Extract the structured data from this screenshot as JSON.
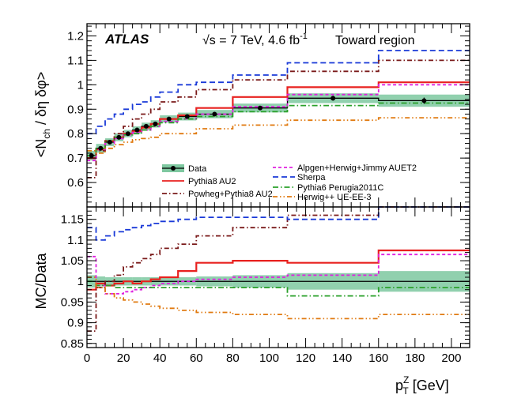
{
  "chart_data": {
    "type": "line",
    "experiment": "ATLAS",
    "energy_label": "√s = 7 TeV, 4.6 fb",
    "lumi_superscript": "-1",
    "region_label": "Toward region",
    "xlabel": "p",
    "xlabel_sup": "Z",
    "xlabel_sub": "T",
    "xlabel_unit": " [GeV]",
    "xlim": [
      0,
      210
    ],
    "xticks": [
      0,
      20,
      40,
      60,
      80,
      100,
      120,
      140,
      160,
      180,
      200
    ],
    "bin_edges": [
      0,
      5,
      10,
      15,
      20,
      25,
      30,
      35,
      40,
      50,
      60,
      80,
      110,
      160,
      210
    ],
    "top_panel": {
      "ylabel": "<N",
      "ylabel_sub": "ch",
      "ylabel_rest": " / δη δφ>",
      "ylim": [
        0.5,
        1.25
      ],
      "yticks": [
        0.6,
        0.7,
        0.8,
        0.9,
        1.0,
        1.1,
        1.2
      ],
      "ytick_labels": [
        "0.6",
        "0.7",
        "0.8",
        "0.9",
        "1",
        "1.1",
        "1.2"
      ],
      "data": {
        "name": "Data",
        "x": [
          2.5,
          7.5,
          12.5,
          17.5,
          22.5,
          27.5,
          32.5,
          37.5,
          45,
          55,
          70,
          95,
          135,
          185
        ],
        "y": [
          0.71,
          0.74,
          0.765,
          0.785,
          0.8,
          0.815,
          0.83,
          0.84,
          0.86,
          0.87,
          0.88,
          0.905,
          0.945,
          0.935
        ],
        "band_half": [
          0.02,
          0.018,
          0.016,
          0.016,
          0.015,
          0.015,
          0.015,
          0.015,
          0.015,
          0.016,
          0.017,
          0.018,
          0.02,
          0.025
        ]
      },
      "series": [
        {
          "name": "Pythia8 AU2",
          "color": "#e8211f",
          "dash": "",
          "values": [
            0.7,
            0.735,
            0.77,
            0.785,
            0.8,
            0.81,
            0.825,
            0.84,
            0.86,
            0.875,
            0.905,
            0.95,
            0.99,
            1.01
          ]
        },
        {
          "name": "Powheg+Pythia8 AU2",
          "color": "#7a1a1a",
          "dash": "6,3,1.5,3",
          "values": [
            0.62,
            0.73,
            0.77,
            0.8,
            0.83,
            0.86,
            0.88,
            0.9,
            0.93,
            0.95,
            0.98,
            1.02,
            1.055,
            1.1
          ]
        },
        {
          "name": "Alpgen+Herwig+Jimmy AUET2",
          "color": "#e020e0",
          "dash": "4,3",
          "values": [
            0.69,
            0.735,
            0.76,
            0.78,
            0.795,
            0.805,
            0.815,
            0.83,
            0.85,
            0.86,
            0.88,
            0.91,
            0.96,
            1.0
          ]
        },
        {
          "name": "Sherpa",
          "color": "#1a3ad8",
          "dash": "7,4",
          "values": [
            0.8,
            0.83,
            0.86,
            0.88,
            0.9,
            0.92,
            0.93,
            0.95,
            0.97,
            1.0,
            1.01,
            1.04,
            1.09,
            1.14
          ]
        },
        {
          "name": "Pythia6 Perugia2011C",
          "color": "#2aa02a",
          "dash": "7,3,1.5,3",
          "values": [
            0.71,
            0.74,
            0.77,
            0.785,
            0.795,
            0.8,
            0.815,
            0.83,
            0.845,
            0.86,
            0.87,
            0.89,
            0.915,
            0.925
          ]
        },
        {
          "name": "Herwig++ UE-EE-3",
          "color": "#e07a10",
          "dash": "6,3,1.5,3,1.5,3",
          "values": [
            0.73,
            0.72,
            0.74,
            0.755,
            0.765,
            0.775,
            0.78,
            0.785,
            0.8,
            0.8,
            0.82,
            0.835,
            0.855,
            0.865
          ]
        }
      ]
    },
    "bottom_panel": {
      "ylabel": "MC/Data",
      "ylim": [
        0.84,
        1.18
      ],
      "yticks": [
        0.85,
        0.9,
        0.95,
        1.0,
        1.05,
        1.1,
        1.15
      ],
      "ytick_labels": [
        "0.85",
        "0.9",
        "0.95",
        "1",
        "1.05",
        "1.1",
        "1.15"
      ],
      "band_half": [
        0.015,
        0.012,
        0.01,
        0.01,
        0.01,
        0.01,
        0.01,
        0.01,
        0.01,
        0.01,
        0.012,
        0.015,
        0.02,
        0.025
      ],
      "series": [
        {
          "name": "Pythia8 AU2",
          "values": [
            0.98,
            0.995,
            0.99,
            0.995,
            1.0,
            0.995,
            1.0,
            1.005,
            1.01,
            1.025,
            1.045,
            1.05,
            1.045,
            1.075
          ]
        },
        {
          "name": "Powheg+Pythia8 AU2",
          "values": [
            0.88,
            0.985,
            1.0,
            1.015,
            1.035,
            1.045,
            1.055,
            1.065,
            1.08,
            1.09,
            1.11,
            1.13,
            1.16,
            1.18
          ]
        },
        {
          "name": "Alpgen+Herwig+Jimmy AUET2",
          "values": [
            1.06,
            0.99,
            0.97,
            0.97,
            0.975,
            0.98,
            0.985,
            0.99,
            0.995,
            1.0,
            1.005,
            1.01,
            1.015,
            1.065
          ]
        },
        {
          "name": "Sherpa",
          "values": [
            1.13,
            1.1,
            1.11,
            1.12,
            1.125,
            1.13,
            1.135,
            1.14,
            1.145,
            1.15,
            1.155,
            1.155,
            1.15,
            1.18
          ]
        },
        {
          "name": "Pythia6 Perugia2011C",
          "values": [
            1.0,
            0.99,
            0.99,
            0.985,
            0.985,
            0.985,
            0.985,
            0.985,
            0.985,
            0.985,
            0.985,
            0.985,
            0.965,
            0.985
          ]
        },
        {
          "name": "Herwig++ UE-EE-3",
          "values": [
            1.01,
            0.985,
            0.97,
            0.96,
            0.955,
            0.95,
            0.945,
            0.94,
            0.935,
            0.93,
            0.925,
            0.92,
            0.91,
            0.92
          ]
        }
      ]
    },
    "legend_placement": "lower-inside-top-panel"
  }
}
